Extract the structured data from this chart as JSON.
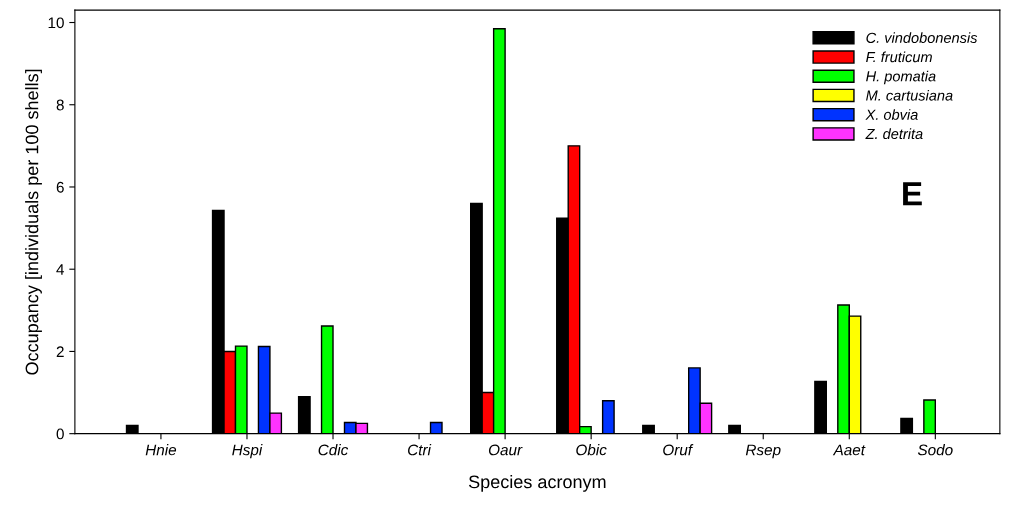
{
  "chart_data": {
    "type": "bar",
    "xlabel": "Species acronym",
    "ylabel": "Occupancy [individuals per 100 shells]",
    "categories": [
      "Hnie",
      "Hspi",
      "Cdic",
      "Ctri",
      "Oaur",
      "Obic",
      "Oruf",
      "Rsep",
      "Aaet",
      "Sodo"
    ],
    "series": [
      {
        "name": "C. vindobonensis",
        "color": "#000000",
        "values": [
          0.2,
          5.43,
          0.9,
          null,
          5.6,
          5.24,
          0.2,
          0.2,
          1.27,
          0.37
        ]
      },
      {
        "name": "F. fruticum",
        "color": "#ff0000",
        "values": [
          null,
          2.0,
          null,
          null,
          1.0,
          7.0,
          null,
          null,
          null,
          null
        ]
      },
      {
        "name": "H. pomatia",
        "color": "#00ff00",
        "values": [
          null,
          2.13,
          2.62,
          null,
          9.85,
          0.17,
          null,
          null,
          3.13,
          0.82
        ]
      },
      {
        "name": "M. cartusiana",
        "color": "#ffff00",
        "values": [
          null,
          null,
          null,
          null,
          null,
          null,
          null,
          null,
          2.86,
          null
        ]
      },
      {
        "name": "X. obvia",
        "color": "#0033ff",
        "values": [
          null,
          2.12,
          0.27,
          0.27,
          null,
          0.8,
          1.6,
          null,
          null,
          null
        ]
      },
      {
        "name": "Z. detrita",
        "color": "#ff33ff",
        "values": [
          null,
          0.5,
          0.25,
          null,
          null,
          null,
          0.74,
          null,
          null,
          null
        ]
      }
    ],
    "ylim": [
      0,
      10.3
    ],
    "yticks": [
      0,
      2,
      4,
      6,
      8,
      10
    ],
    "grid": false,
    "legend": "top right",
    "annotations": [
      {
        "text": "E"
      }
    ]
  }
}
